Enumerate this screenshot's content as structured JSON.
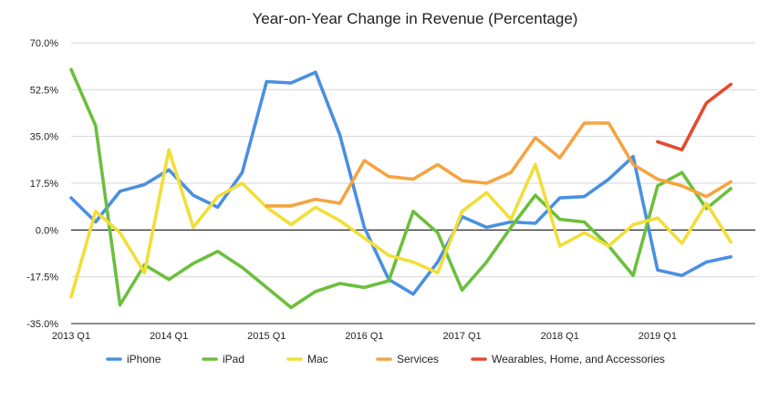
{
  "chart_data": {
    "type": "line",
    "title": "Year-on-Year Change in Revenue (Percentage)",
    "xlabel": "",
    "ylabel": "",
    "ylim": [
      -35,
      70
    ],
    "y_ticks": [
      70,
      52.5,
      35,
      17.5,
      0,
      -17.5,
      -35
    ],
    "y_tick_labels": [
      "70.0%",
      "52.5%",
      "35.0%",
      "17.5%",
      "0.0%",
      "-17.5%",
      "-35.0%"
    ],
    "x_tick_labels": [
      "2013 Q1",
      "2014 Q1",
      "2015 Q1",
      "2016 Q1",
      "2017 Q1",
      "2018 Q1",
      "2019 Q1"
    ],
    "x_tick_positions": [
      0,
      4,
      8,
      12,
      16,
      20,
      24
    ],
    "x": [
      "2013 Q1",
      "2013 Q2",
      "2013 Q3",
      "2013 Q4",
      "2014 Q1",
      "2014 Q2",
      "2014 Q3",
      "2014 Q4",
      "2015 Q1",
      "2015 Q2",
      "2015 Q3",
      "2015 Q4",
      "2016 Q1",
      "2016 Q2",
      "2016 Q3",
      "2016 Q4",
      "2017 Q1",
      "2017 Q2",
      "2017 Q3",
      "2017 Q4",
      "2018 Q1",
      "2018 Q2",
      "2018 Q3",
      "2018 Q4",
      "2019 Q1",
      "2019 Q2",
      "2019 Q3",
      "2019 Q4",
      "2020 Q1"
    ],
    "grid": true,
    "legend_position": "bottom",
    "series": [
      {
        "name": "iPhone",
        "color": "#4a90e2",
        "values": [
          12,
          3,
          14.5,
          17,
          22.5,
          13,
          8.5,
          21.5,
          55.5,
          55,
          59,
          35.5,
          1,
          -18.5,
          -24,
          -12,
          5,
          1,
          3,
          2.5,
          12,
          12.5,
          19,
          27.5,
          -15,
          -17,
          -12,
          -10,
          null
        ]
      },
      {
        "name": "iPad",
        "color": "#6cbf3c",
        "values": [
          60,
          39,
          -28,
          -13,
          -18.5,
          -12.5,
          -8,
          -14,
          -21.5,
          -29,
          -23,
          -20,
          -21.5,
          -19,
          7,
          -1,
          -22.5,
          -12,
          1,
          13,
          4,
          3,
          -6,
          -17,
          16.5,
          21.5,
          8,
          15.5,
          null
        ]
      },
      {
        "name": "Mac",
        "color": "#f2de39",
        "values": [
          -25,
          7,
          -1,
          -16,
          30,
          1,
          12.5,
          17.5,
          8.5,
          2,
          8.5,
          3.5,
          -3,
          -9.5,
          -12,
          -16,
          7,
          14,
          4,
          24.5,
          -6,
          -1,
          -6,
          2,
          4.5,
          -5,
          10,
          -4.5,
          null
        ]
      },
      {
        "name": "Services",
        "color": "#f5a441",
        "values": [
          null,
          null,
          null,
          null,
          null,
          null,
          null,
          null,
          9,
          9,
          11.5,
          10,
          26,
          20,
          19,
          24.5,
          18.5,
          17.5,
          21.5,
          34.5,
          27,
          40,
          40,
          24.5,
          19,
          16.5,
          12.5,
          18,
          null
        ]
      },
      {
        "name": "Wearables, Home, and Accessories",
        "color": "#e8482e",
        "values": [
          null,
          null,
          null,
          null,
          null,
          null,
          null,
          null,
          null,
          null,
          null,
          null,
          null,
          null,
          null,
          null,
          null,
          null,
          null,
          null,
          null,
          null,
          null,
          null,
          33,
          30,
          47.5,
          54.5,
          null
        ]
      }
    ]
  }
}
